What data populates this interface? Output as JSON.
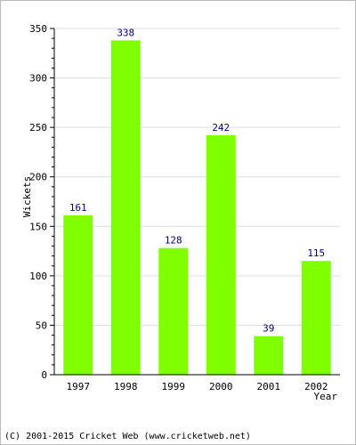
{
  "chart_data": {
    "type": "bar",
    "categories": [
      "1997",
      "1998",
      "1999",
      "2000",
      "2001",
      "2002"
    ],
    "values": [
      161,
      338,
      128,
      242,
      39,
      115
    ],
    "data_labels": [
      "161",
      "338",
      "128",
      "242",
      "39",
      "115"
    ],
    "title": "",
    "xlabel": "Year",
    "ylabel": "Wickets",
    "ylim": [
      0,
      350
    ],
    "yticks": [
      0,
      50,
      100,
      150,
      200,
      250,
      300,
      350
    ],
    "grid": true,
    "legend": "none",
    "colors": {
      "bar": "#80ff00",
      "data_label": "#000080",
      "grid": "#dddddd",
      "axis": "#000000"
    }
  },
  "footer": {
    "text": "(C) 2001-2015 Cricket Web (www.cricketweb.net)"
  }
}
